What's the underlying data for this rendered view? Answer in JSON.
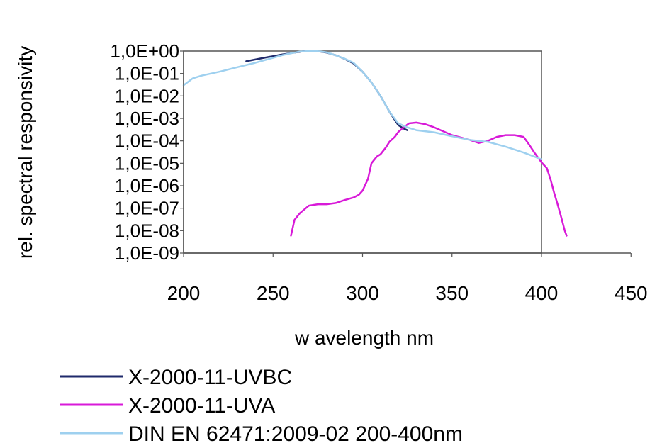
{
  "chart_data": {
    "type": "line",
    "title": "",
    "xlabel": "w avelength nm",
    "ylabel": "rel. spectral responsivity",
    "xlim": [
      200,
      450
    ],
    "ylim": [
      1e-09,
      1
    ],
    "yscale": "log",
    "grid": false,
    "legend_position": "bottom-left",
    "x_ticks": [
      200,
      250,
      300,
      350,
      400,
      450
    ],
    "x_tick_labels": [
      "200",
      "250",
      "300",
      "350",
      "400",
      "450"
    ],
    "y_ticks": [
      1,
      0.1,
      0.01,
      0.001,
      0.0001,
      1e-05,
      1e-06,
      1e-07,
      1e-08,
      1e-09
    ],
    "y_tick_labels": [
      "1,0E+00",
      "1,0E-01",
      "1,0E-02",
      "1,0E-03",
      "1,0E-04",
      "1,0E-05",
      "1,0E-06",
      "1,0E-07",
      "1,0E-08",
      "1,0E-09"
    ],
    "series": [
      {
        "name": "X-2000-11-UVBC",
        "color": "#1f2a6b",
        "x": [
          235,
          245,
          255,
          262,
          268,
          272,
          276,
          280,
          285,
          290,
          295,
          300,
          305,
          310,
          315,
          320,
          323,
          325
        ],
        "y": [
          0.35,
          0.5,
          0.7,
          0.85,
          1.0,
          1.0,
          0.95,
          0.85,
          0.65,
          0.45,
          0.28,
          0.12,
          0.04,
          0.01,
          0.002,
          0.0005,
          0.00035,
          0.0003
        ]
      },
      {
        "name": "X-2000-11-UVA",
        "color": "#d81ad8",
        "x": [
          260,
          262,
          265,
          270,
          275,
          280,
          285,
          290,
          295,
          298,
          300,
          303,
          305,
          308,
          310,
          313,
          315,
          318,
          320,
          323,
          326,
          330,
          335,
          340,
          350,
          360,
          365,
          370,
          375,
          380,
          385,
          390,
          393,
          396,
          400,
          403,
          405,
          407,
          409,
          411,
          413,
          414
        ],
        "y": [
          6e-09,
          3e-08,
          6e-08,
          1.3e-07,
          1.5e-07,
          1.5e-07,
          1.7e-07,
          2.3e-07,
          3e-07,
          4e-07,
          6e-07,
          2e-06,
          1e-05,
          2e-05,
          2.5e-05,
          5e-05,
          9e-05,
          0.00015,
          0.00025,
          0.0004,
          0.0006,
          0.00065,
          0.00055,
          0.0004,
          0.00018,
          0.00011,
          8e-05,
          0.0001,
          0.00015,
          0.00018,
          0.00018,
          0.00015,
          7e-05,
          3e-05,
          1.1e-05,
          6e-06,
          2e-06,
          5e-07,
          1.5e-07,
          4e-08,
          1e-08,
          6e-09
        ]
      },
      {
        "name": "DIN EN 62471:2009-02 200-400nm",
        "color": "#9ed0ef",
        "x": [
          200,
          205,
          210,
          220,
          230,
          240,
          250,
          255,
          260,
          265,
          270,
          275,
          280,
          285,
          290,
          295,
          300,
          305,
          310,
          315,
          320,
          325,
          330,
          340,
          350,
          360,
          370,
          380,
          390,
          400
        ],
        "y": [
          0.03,
          0.06,
          0.08,
          0.12,
          0.19,
          0.3,
          0.5,
          0.65,
          0.8,
          0.95,
          1.0,
          0.98,
          0.88,
          0.64,
          0.46,
          0.3,
          0.12,
          0.04,
          0.01,
          0.002,
          0.0006,
          0.0004,
          0.0003,
          0.00024,
          0.00016,
          0.00011,
          9e-05,
          5.5e-05,
          3e-05,
          1.5e-05
        ]
      }
    ]
  }
}
